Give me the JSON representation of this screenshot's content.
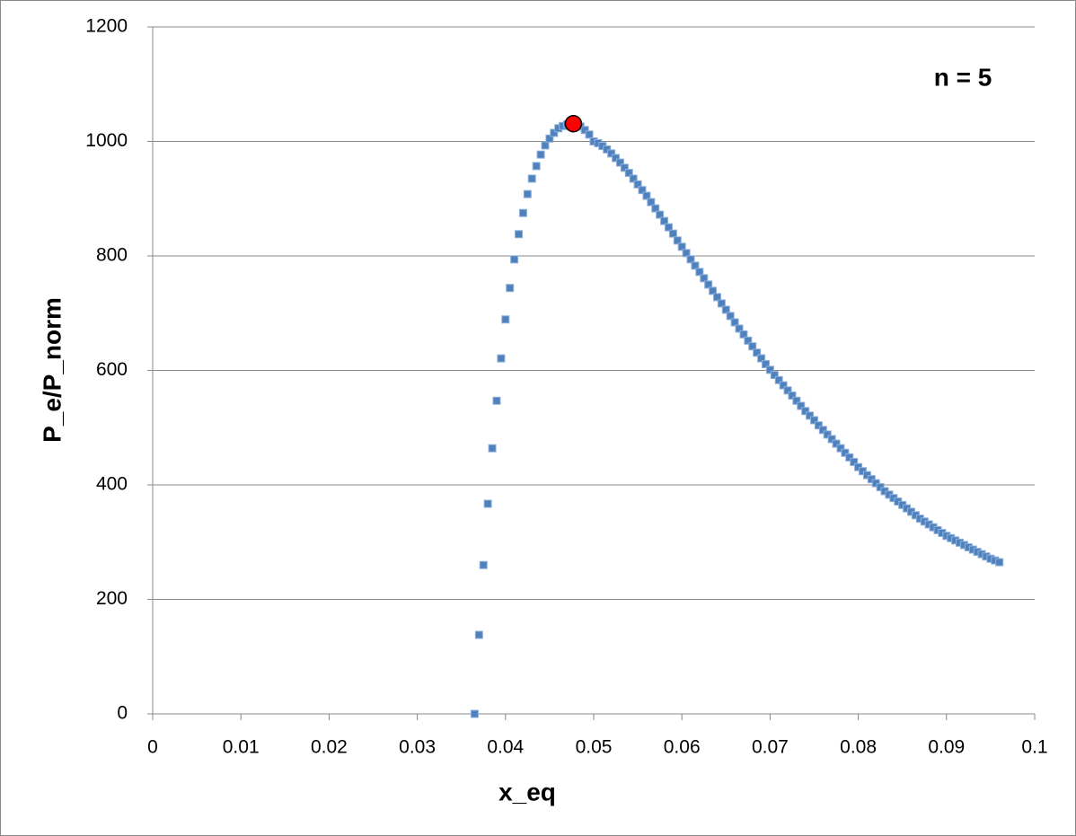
{
  "chart_data": {
    "type": "scatter",
    "x_label": "x_eq",
    "y_label": "P_e/P_norm",
    "annotation": "n = 5",
    "xlim": [
      0,
      0.1
    ],
    "xticks": [
      0,
      0.01,
      0.02,
      0.03,
      0.04,
      0.05,
      0.06,
      0.07,
      0.08,
      0.09,
      0.1
    ],
    "ylim": [
      0,
      1200
    ],
    "yticks": [
      0,
      200,
      400,
      600,
      800,
      1000,
      1200
    ],
    "grid": true,
    "series": [
      {
        "color": "#4f81bd",
        "marker": "square",
        "x": [
          0.0365,
          0.037,
          0.0375,
          0.038,
          0.0385,
          0.039,
          0.0395,
          0.04,
          0.0405,
          0.041,
          0.0415,
          0.042,
          0.0425,
          0.043,
          0.0435,
          0.044,
          0.0445,
          0.045,
          0.0455,
          0.046,
          0.0465,
          0.047,
          0.0475,
          0.048,
          0.0485,
          0.049,
          0.0495,
          0.05,
          0.0505,
          0.051,
          0.0515,
          0.052,
          0.0525,
          0.053,
          0.0535,
          0.054,
          0.0545,
          0.055,
          0.0555,
          0.056,
          0.0565,
          0.057,
          0.0575,
          0.058,
          0.0585,
          0.059,
          0.0595,
          0.06,
          0.0605,
          0.061,
          0.0615,
          0.062,
          0.0625,
          0.063,
          0.0635,
          0.064,
          0.0645,
          0.065,
          0.0655,
          0.066,
          0.0665,
          0.067,
          0.0675,
          0.068,
          0.0685,
          0.069,
          0.0695,
          0.07,
          0.0705,
          0.071,
          0.0715,
          0.072,
          0.0725,
          0.073,
          0.0735,
          0.074,
          0.0745,
          0.075,
          0.0755,
          0.076,
          0.0765,
          0.077,
          0.0775,
          0.078,
          0.0785,
          0.079,
          0.0795,
          0.08,
          0.0805,
          0.081,
          0.0815,
          0.082,
          0.0825,
          0.083,
          0.0835,
          0.084,
          0.0845,
          0.085,
          0.0855,
          0.086,
          0.0865,
          0.087,
          0.0875,
          0.088,
          0.0885,
          0.089,
          0.0895,
          0.09,
          0.0905,
          0.091,
          0.0915,
          0.092,
          0.0925,
          0.093,
          0.0935,
          0.094,
          0.0945,
          0.095,
          0.0955,
          0.096
        ],
        "values": [
          0,
          138,
          260,
          367,
          464,
          547,
          621,
          689,
          744,
          794,
          838,
          875,
          908,
          935,
          957,
          977,
          993,
          1005,
          1015,
          1023,
          1027,
          1030,
          1031,
          1030,
          1026,
          1020,
          1012,
          1000,
          997,
          992,
          986,
          979,
          971,
          963,
          954,
          945,
          935,
          925,
          915,
          905,
          894,
          883,
          872,
          861,
          850,
          839,
          827,
          816,
          805,
          794,
          783,
          772,
          761,
          750,
          739,
          728,
          717,
          706,
          695,
          684,
          673,
          663,
          652,
          642,
          631,
          621,
          611,
          601,
          592,
          583,
          574,
          565,
          556,
          547,
          538,
          529,
          521,
          513,
          504,
          496,
          488,
          480,
          472,
          464,
          456,
          448,
          440,
          431,
          424,
          417,
          410,
          403,
          396,
          389,
          383,
          377,
          371,
          365,
          359,
          353,
          347,
          341,
          336,
          331,
          326,
          321,
          316,
          311,
          307,
          303,
          299,
          295,
          291,
          287,
          283,
          279,
          275,
          271,
          268,
          265
        ]
      },
      {
        "color": "#ff0000",
        "marker": "circle",
        "x": [
          0.0477
        ],
        "values": [
          1031
        ]
      }
    ]
  }
}
